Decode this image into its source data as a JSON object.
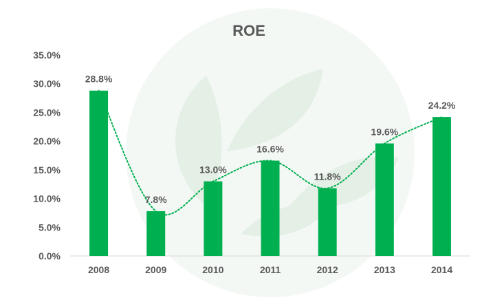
{
  "chart_data": {
    "type": "bar",
    "title": "ROE",
    "xlabel": "",
    "ylabel": "",
    "categories": [
      "2008",
      "2009",
      "2010",
      "2011",
      "2012",
      "2013",
      "2014"
    ],
    "values": [
      28.8,
      7.8,
      13.0,
      16.6,
      11.8,
      19.6,
      24.2
    ],
    "data_labels": [
      "28.8%",
      "7.8%",
      "13.0%",
      "16.6%",
      "11.8%",
      "19.6%",
      "24.2%"
    ],
    "y_ticks": [
      "0.0%",
      "5.0%",
      "10.0%",
      "15.0%",
      "20.0%",
      "25.0%",
      "30.0%",
      "35.0%"
    ],
    "ylim": [
      0,
      35
    ],
    "grid": false,
    "legend": "none",
    "trendline": "dotted smoothed",
    "colors": {
      "bar": "#00b050",
      "trend": "#00b050",
      "text": "#595959",
      "watermark": "#e4efe6"
    }
  }
}
